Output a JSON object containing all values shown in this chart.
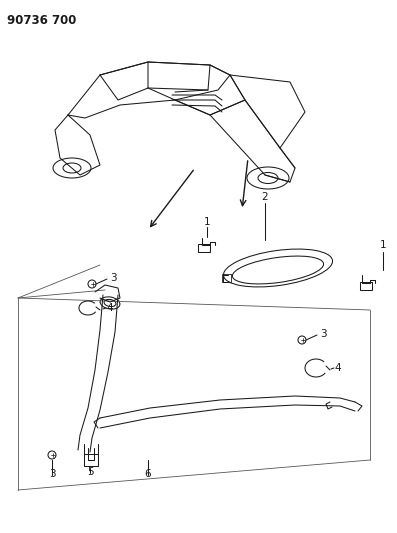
{
  "title": "90736 700",
  "bg_color": "#ffffff",
  "line_color": "#1a1a1a",
  "fig_width": 3.97,
  "fig_height": 5.33,
  "dpi": 100,
  "title_fontsize": 8.5,
  "label_fontsize": 7.5
}
